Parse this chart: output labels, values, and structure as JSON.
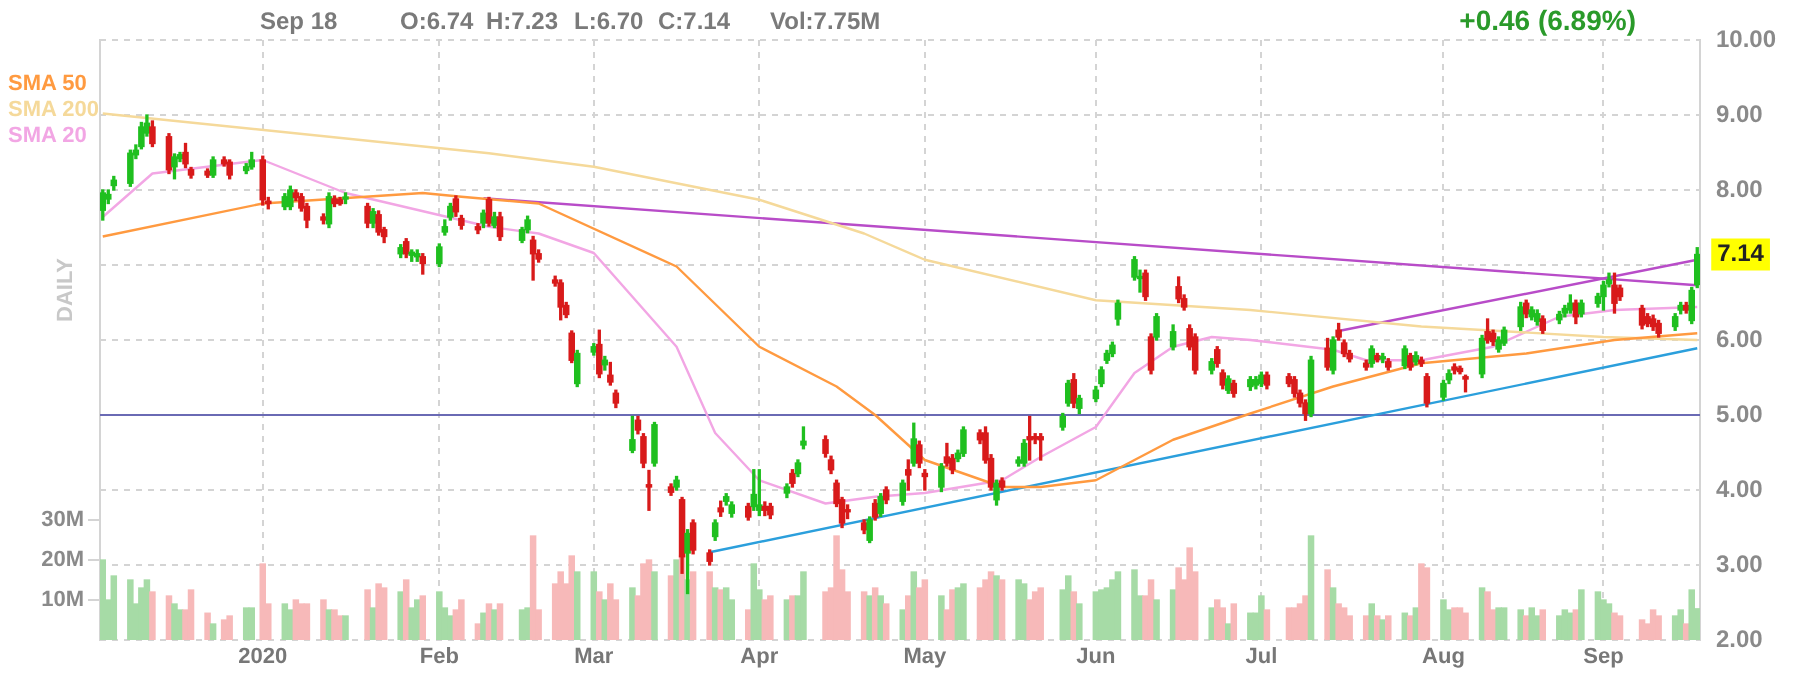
{
  "chart_data": {
    "type": "candlestick",
    "x": [
      "2019-12-04",
      "2019-12-05",
      "2019-12-06",
      "2019-12-09",
      "2019-12-10",
      "2019-12-11",
      "2019-12-12",
      "2019-12-13",
      "2019-12-16",
      "2019-12-17",
      "2019-12-18",
      "2019-12-19",
      "2019-12-20",
      "2019-12-23",
      "2019-12-24",
      "2019-12-26",
      "2019-12-27",
      "2019-12-30",
      "2019-12-31",
      "2020-01-02",
      "2020-01-03",
      "2020-01-06",
      "2020-01-07",
      "2020-01-08",
      "2020-01-09",
      "2020-01-10",
      "2020-01-13",
      "2020-01-14",
      "2020-01-15",
      "2020-01-16",
      "2020-01-17",
      "2020-01-21",
      "2020-01-22",
      "2020-01-23",
      "2020-01-24",
      "2020-01-27",
      "2020-01-28",
      "2020-01-29",
      "2020-01-30",
      "2020-01-31",
      "2020-02-03",
      "2020-02-04",
      "2020-02-05",
      "2020-02-06",
      "2020-02-07",
      "2020-02-10",
      "2020-02-11",
      "2020-02-12",
      "2020-02-13",
      "2020-02-14",
      "2020-02-18",
      "2020-02-19",
      "2020-02-20",
      "2020-02-21",
      "2020-02-24",
      "2020-02-25",
      "2020-02-26",
      "2020-02-27",
      "2020-02-28",
      "2020-03-02",
      "2020-03-03",
      "2020-03-04",
      "2020-03-05",
      "2020-03-06",
      "2020-03-09",
      "2020-03-10",
      "2020-03-11",
      "2020-03-12",
      "2020-03-13",
      "2020-03-16",
      "2020-03-17",
      "2020-03-18",
      "2020-03-19",
      "2020-03-20",
      "2020-03-23",
      "2020-03-24",
      "2020-03-25",
      "2020-03-26",
      "2020-03-27",
      "2020-03-30",
      "2020-03-31",
      "2020-04-01",
      "2020-04-02",
      "2020-04-03",
      "2020-04-06",
      "2020-04-07",
      "2020-04-08",
      "2020-04-09",
      "2020-04-13",
      "2020-04-14",
      "2020-04-15",
      "2020-04-16",
      "2020-04-17",
      "2020-04-20",
      "2020-04-21",
      "2020-04-22",
      "2020-04-23",
      "2020-04-24",
      "2020-04-27",
      "2020-04-28",
      "2020-04-29",
      "2020-04-30",
      "2020-05-01",
      "2020-05-04",
      "2020-05-05",
      "2020-05-06",
      "2020-05-07",
      "2020-05-08",
      "2020-05-11",
      "2020-05-12",
      "2020-05-13",
      "2020-05-14",
      "2020-05-15",
      "2020-05-18",
      "2020-05-19",
      "2020-05-20",
      "2020-05-21",
      "2020-05-22",
      "2020-05-26",
      "2020-05-27",
      "2020-05-28",
      "2020-05-29",
      "2020-06-01",
      "2020-06-02",
      "2020-06-03",
      "2020-06-04",
      "2020-06-05",
      "2020-06-08",
      "2020-06-09",
      "2020-06-10",
      "2020-06-11",
      "2020-06-12",
      "2020-06-15",
      "2020-06-16",
      "2020-06-17",
      "2020-06-18",
      "2020-06-19",
      "2020-06-22",
      "2020-06-23",
      "2020-06-24",
      "2020-06-25",
      "2020-06-26",
      "2020-06-29",
      "2020-06-30",
      "2020-07-01",
      "2020-07-02",
      "2020-07-06",
      "2020-07-07",
      "2020-07-08",
      "2020-07-09",
      "2020-07-10",
      "2020-07-13",
      "2020-07-14",
      "2020-07-15",
      "2020-07-16",
      "2020-07-17",
      "2020-07-20",
      "2020-07-21",
      "2020-07-22",
      "2020-07-23",
      "2020-07-24",
      "2020-07-27",
      "2020-07-28",
      "2020-07-29",
      "2020-07-30",
      "2020-07-31",
      "2020-08-03",
      "2020-08-04",
      "2020-08-05",
      "2020-08-06",
      "2020-08-07",
      "2020-08-10",
      "2020-08-11",
      "2020-08-12",
      "2020-08-13",
      "2020-08-14",
      "2020-08-17",
      "2020-08-18",
      "2020-08-19",
      "2020-08-20",
      "2020-08-21",
      "2020-08-24",
      "2020-08-25",
      "2020-08-26",
      "2020-08-27",
      "2020-08-28",
      "2020-08-31",
      "2020-09-01",
      "2020-09-02",
      "2020-09-03",
      "2020-09-04",
      "2020-09-08",
      "2020-09-09",
      "2020-09-10",
      "2020-09-11",
      "2020-09-14",
      "2020-09-15",
      "2020-09-16",
      "2020-09-17",
      "2020-09-18"
    ],
    "ohlc": [
      [
        7.73,
        8.0,
        7.6,
        7.96
      ],
      [
        7.88,
        8.0,
        7.82,
        7.94
      ],
      [
        8.06,
        8.18,
        8.0,
        8.13
      ],
      [
        8.09,
        8.53,
        8.05,
        8.49
      ],
      [
        8.47,
        8.6,
        8.42,
        8.53
      ],
      [
        8.58,
        8.9,
        8.55,
        8.84
      ],
      [
        8.76,
        9.0,
        8.72,
        8.89
      ],
      [
        8.84,
        8.92,
        8.58,
        8.62
      ],
      [
        8.71,
        8.75,
        8.22,
        8.27
      ],
      [
        8.31,
        8.48,
        8.15,
        8.44
      ],
      [
        8.42,
        8.5,
        8.38,
        8.47
      ],
      [
        8.5,
        8.62,
        8.3,
        8.35
      ],
      [
        8.27,
        8.3,
        8.16,
        8.2
      ],
      [
        8.25,
        8.28,
        8.17,
        8.2
      ],
      [
        8.2,
        8.44,
        8.17,
        8.4
      ],
      [
        8.4,
        8.44,
        8.32,
        8.35
      ],
      [
        8.37,
        8.4,
        8.15,
        8.2
      ],
      [
        8.26,
        8.35,
        8.22,
        8.31
      ],
      [
        8.31,
        8.5,
        8.28,
        8.4
      ],
      [
        8.4,
        8.45,
        7.8,
        7.87
      ],
      [
        7.85,
        7.9,
        7.75,
        7.82
      ],
      [
        7.78,
        7.95,
        7.74,
        7.91
      ],
      [
        7.78,
        8.05,
        7.74,
        8.0
      ],
      [
        7.96,
        8.0,
        7.86,
        7.9
      ],
      [
        7.91,
        7.95,
        7.72,
        7.76
      ],
      [
        7.78,
        7.82,
        7.5,
        7.6
      ],
      [
        7.64,
        7.68,
        7.55,
        7.6
      ],
      [
        7.55,
        7.96,
        7.5,
        7.91
      ],
      [
        7.88,
        7.92,
        7.78,
        7.82
      ],
      [
        7.87,
        7.9,
        7.8,
        7.82
      ],
      [
        7.88,
        7.96,
        7.82,
        7.89
      ],
      [
        7.78,
        7.82,
        7.5,
        7.56
      ],
      [
        7.56,
        7.75,
        7.5,
        7.71
      ],
      [
        7.67,
        7.72,
        7.4,
        7.44
      ],
      [
        7.47,
        7.5,
        7.3,
        7.38
      ],
      [
        7.15,
        7.27,
        7.1,
        7.23
      ],
      [
        7.31,
        7.35,
        7.1,
        7.15
      ],
      [
        7.13,
        7.2,
        7.05,
        7.17
      ],
      [
        7.11,
        7.2,
        7.05,
        7.15
      ],
      [
        7.11,
        7.15,
        6.88,
        7.02
      ],
      [
        7.02,
        7.28,
        6.98,
        7.24
      ],
      [
        7.44,
        7.6,
        7.4,
        7.51
      ],
      [
        7.64,
        7.82,
        7.6,
        7.78
      ],
      [
        7.88,
        7.92,
        7.65,
        7.71
      ],
      [
        7.62,
        7.66,
        7.48,
        7.53
      ],
      [
        7.51,
        7.55,
        7.42,
        7.47
      ],
      [
        7.56,
        7.73,
        7.5,
        7.69
      ],
      [
        7.87,
        7.9,
        7.52,
        7.56
      ],
      [
        7.53,
        7.7,
        7.5,
        7.64
      ],
      [
        7.64,
        7.7,
        7.33,
        7.38
      ],
      [
        7.33,
        7.5,
        7.3,
        7.47
      ],
      [
        7.47,
        7.65,
        7.43,
        7.6
      ],
      [
        7.33,
        7.38,
        6.8,
        7.15
      ],
      [
        7.15,
        7.2,
        7.04,
        7.08
      ],
      [
        6.8,
        6.85,
        6.72,
        6.76
      ],
      [
        6.76,
        6.8,
        6.27,
        6.44
      ],
      [
        6.46,
        6.5,
        6.3,
        6.34
      ],
      [
        6.09,
        6.12,
        5.7,
        5.73
      ],
      [
        5.42,
        5.86,
        5.38,
        5.82
      ],
      [
        5.84,
        5.95,
        5.8,
        5.91
      ],
      [
        5.94,
        6.13,
        5.5,
        5.55
      ],
      [
        5.67,
        5.78,
        5.6,
        5.73
      ],
      [
        5.53,
        5.7,
        5.4,
        5.44
      ],
      [
        5.29,
        5.33,
        5.1,
        5.16
      ],
      [
        4.53,
        4.98,
        4.5,
        4.67
      ],
      [
        4.93,
        4.98,
        4.75,
        4.8
      ],
      [
        4.71,
        4.75,
        4.3,
        4.36
      ],
      [
        4.07,
        4.26,
        3.73,
        4.04
      ],
      [
        4.36,
        4.9,
        4.32,
        4.87
      ],
      [
        4.04,
        4.08,
        3.93,
        3.97
      ],
      [
        4.04,
        4.18,
        4.0,
        4.13
      ],
      [
        3.87,
        3.9,
        2.89,
        3.11
      ],
      [
        3.16,
        3.47,
        2.62,
        3.42
      ],
      [
        3.56,
        3.6,
        3.15,
        3.2
      ],
      [
        3.16,
        3.2,
        3.0,
        3.05
      ],
      [
        3.38,
        3.6,
        3.33,
        3.56
      ],
      [
        3.76,
        3.85,
        3.65,
        3.71
      ],
      [
        3.85,
        3.95,
        3.8,
        3.91
      ],
      [
        3.69,
        3.84,
        3.64,
        3.8
      ],
      [
        3.78,
        3.82,
        3.6,
        3.64
      ],
      [
        3.78,
        4.27,
        3.73,
        3.94
      ],
      [
        3.73,
        4.27,
        3.66,
        3.8
      ],
      [
        3.78,
        3.84,
        3.66,
        3.73
      ],
      [
        3.78,
        3.82,
        3.62,
        3.67
      ],
      [
        3.96,
        4.08,
        3.9,
        4.04
      ],
      [
        4.22,
        4.27,
        4.04,
        4.09
      ],
      [
        4.22,
        4.4,
        4.18,
        4.36
      ],
      [
        4.6,
        4.84,
        4.55,
        4.65
      ],
      [
        4.67,
        4.72,
        4.44,
        4.49
      ],
      [
        4.4,
        4.45,
        4.22,
        4.27
      ],
      [
        4.09,
        4.13,
        3.78,
        3.82
      ],
      [
        3.87,
        3.9,
        3.5,
        3.56
      ],
      [
        3.73,
        3.8,
        3.62,
        3.71
      ],
      [
        3.56,
        3.6,
        3.42,
        3.47
      ],
      [
        3.33,
        3.64,
        3.3,
        3.6
      ],
      [
        3.82,
        3.87,
        3.6,
        3.64
      ],
      [
        3.69,
        3.95,
        3.65,
        3.91
      ],
      [
        4.0,
        4.04,
        3.82,
        3.87
      ],
      [
        3.85,
        4.13,
        3.8,
        4.09
      ],
      [
        4.27,
        4.4,
        4.0,
        4.2
      ],
      [
        4.36,
        4.89,
        4.32,
        4.68
      ],
      [
        4.6,
        4.65,
        4.3,
        4.36
      ],
      [
        4.22,
        4.27,
        4.0,
        4.18
      ],
      [
        4.04,
        4.35,
        3.98,
        4.31
      ],
      [
        4.44,
        4.62,
        4.32,
        4.36
      ],
      [
        4.42,
        4.47,
        4.22,
        4.27
      ],
      [
        4.42,
        4.53,
        4.38,
        4.49
      ],
      [
        4.49,
        4.84,
        4.45,
        4.8
      ],
      [
        4.76,
        4.8,
        4.62,
        4.67
      ],
      [
        4.76,
        4.84,
        4.36,
        4.4
      ],
      [
        4.42,
        4.47,
        4.0,
        4.04
      ],
      [
        3.87,
        4.13,
        3.8,
        4.09
      ],
      [
        4.12,
        4.16,
        4.0,
        4.04
      ],
      [
        4.36,
        4.44,
        4.32,
        4.4
      ],
      [
        4.36,
        4.67,
        4.32,
        4.62
      ],
      [
        4.71,
        4.98,
        4.4,
        4.67
      ],
      [
        4.71,
        4.75,
        4.62,
        4.68
      ],
      [
        4.71,
        4.75,
        4.4,
        4.67
      ],
      [
        4.84,
        5.02,
        4.8,
        4.98
      ],
      [
        5.16,
        5.46,
        5.12,
        5.42
      ],
      [
        5.47,
        5.55,
        5.1,
        5.16
      ],
      [
        5.09,
        5.26,
        5.02,
        5.22
      ],
      [
        5.22,
        5.38,
        5.18,
        5.33
      ],
      [
        5.42,
        5.64,
        5.38,
        5.6
      ],
      [
        5.73,
        5.86,
        5.69,
        5.82
      ],
      [
        5.82,
        5.97,
        5.78,
        5.93
      ],
      [
        6.28,
        6.53,
        6.2,
        6.49
      ],
      [
        6.84,
        7.11,
        6.8,
        7.07
      ],
      [
        6.82,
        6.93,
        6.64,
        6.84
      ],
      [
        6.89,
        6.93,
        6.53,
        6.58
      ],
      [
        6.04,
        6.08,
        5.55,
        5.6
      ],
      [
        6.04,
        6.35,
        6.0,
        6.31
      ],
      [
        5.91,
        6.2,
        5.87,
        6.11
      ],
      [
        6.71,
        6.84,
        6.5,
        6.55
      ],
      [
        6.55,
        6.6,
        6.4,
        6.44
      ],
      [
        6.15,
        6.2,
        5.87,
        5.91
      ],
      [
        6.04,
        6.08,
        5.55,
        5.6
      ],
      [
        5.6,
        5.75,
        5.55,
        5.71
      ],
      [
        5.87,
        5.91,
        5.64,
        5.69
      ],
      [
        5.56,
        5.6,
        5.35,
        5.4
      ],
      [
        5.33,
        5.52,
        5.29,
        5.48
      ],
      [
        5.42,
        5.46,
        5.24,
        5.29
      ],
      [
        5.38,
        5.51,
        5.33,
        5.47
      ],
      [
        5.4,
        5.51,
        5.35,
        5.47
      ],
      [
        5.42,
        5.57,
        5.38,
        5.53
      ],
      [
        5.53,
        5.57,
        5.35,
        5.4
      ],
      [
        5.51,
        5.55,
        5.38,
        5.42
      ],
      [
        5.47,
        5.51,
        5.24,
        5.29
      ],
      [
        5.29,
        5.33,
        5.11,
        5.16
      ],
      [
        5.16,
        5.2,
        4.93,
        5.02
      ],
      [
        5.02,
        5.78,
        4.98,
        5.73
      ],
      [
        5.89,
        6.02,
        5.6,
        5.64
      ],
      [
        5.6,
        6.04,
        5.55,
        6.0
      ],
      [
        6.13,
        6.22,
        6.0,
        6.04
      ],
      [
        5.96,
        6.0,
        5.78,
        5.82
      ],
      [
        5.82,
        5.86,
        5.71,
        5.75
      ],
      [
        5.69,
        5.73,
        5.6,
        5.64
      ],
      [
        5.69,
        5.92,
        5.64,
        5.88
      ],
      [
        5.79,
        5.82,
        5.71,
        5.74
      ],
      [
        5.75,
        5.82,
        5.7,
        5.76
      ],
      [
        5.71,
        5.75,
        5.6,
        5.64
      ],
      [
        5.66,
        5.92,
        5.62,
        5.88
      ],
      [
        5.79,
        5.82,
        5.6,
        5.64
      ],
      [
        5.71,
        5.84,
        5.67,
        5.79
      ],
      [
        5.73,
        5.77,
        5.65,
        5.69
      ],
      [
        5.51,
        5.55,
        5.11,
        5.16
      ],
      [
        5.24,
        5.46,
        5.2,
        5.42
      ],
      [
        5.47,
        5.6,
        5.42,
        5.55
      ],
      [
        5.64,
        5.68,
        5.55,
        5.6
      ],
      [
        5.62,
        5.65,
        5.55,
        5.58
      ],
      [
        5.51,
        5.53,
        5.31,
        5.48
      ],
      [
        5.55,
        6.06,
        5.5,
        6.02
      ],
      [
        6.11,
        6.28,
        5.96,
        6.0
      ],
      [
        6.09,
        6.13,
        5.93,
        5.98
      ],
      [
        5.88,
        6.04,
        5.84,
        6.0
      ],
      [
        5.96,
        6.17,
        5.93,
        6.13
      ],
      [
        6.18,
        6.5,
        6.13,
        6.44
      ],
      [
        6.49,
        6.53,
        6.3,
        6.35
      ],
      [
        6.31,
        6.44,
        6.27,
        6.4
      ],
      [
        6.25,
        6.4,
        6.2,
        6.35
      ],
      [
        6.28,
        6.32,
        6.09,
        6.13
      ],
      [
        6.27,
        6.38,
        6.22,
        6.34
      ],
      [
        6.36,
        6.46,
        6.31,
        6.42
      ],
      [
        6.4,
        6.6,
        6.36,
        6.49
      ],
      [
        6.49,
        6.53,
        6.22,
        6.31
      ],
      [
        6.35,
        6.53,
        6.31,
        6.49
      ],
      [
        6.49,
        6.62,
        6.44,
        6.58
      ],
      [
        6.58,
        6.78,
        6.4,
        6.73
      ],
      [
        6.75,
        6.89,
        6.71,
        6.8
      ],
      [
        6.73,
        6.89,
        6.36,
        6.49
      ],
      [
        6.69,
        6.73,
        6.53,
        6.58
      ],
      [
        6.42,
        6.46,
        6.15,
        6.2
      ],
      [
        6.31,
        6.35,
        6.18,
        6.22
      ],
      [
        6.28,
        6.33,
        6.13,
        6.18
      ],
      [
        6.22,
        6.26,
        6.04,
        6.09
      ],
      [
        6.18,
        6.35,
        6.13,
        6.31
      ],
      [
        6.4,
        6.5,
        6.35,
        6.46
      ],
      [
        6.46,
        6.5,
        6.36,
        6.4
      ],
      [
        6.26,
        6.7,
        6.22,
        6.66
      ],
      [
        6.74,
        7.23,
        6.7,
        7.14
      ]
    ],
    "colors": [
      "#1fbf1f",
      "#1fbf1f",
      "#1fbf1f",
      "#1fbf1f",
      "#1fbf1f",
      "#1fbf1f",
      "#1fbf1f",
      "#d81a1a",
      "#d81a1a",
      "#1fbf1f",
      "#1fbf1f",
      "#d81a1a",
      "#d81a1a",
      "#d81a1a",
      "#1fbf1f",
      "#d81a1a",
      "#d81a1a",
      "#1fbf1f",
      "#1fbf1f",
      "#d81a1a",
      "#d81a1a",
      "#1fbf1f",
      "#1fbf1f",
      "#d81a1a",
      "#d81a1a",
      "#d81a1a",
      "#d81a1a",
      "#1fbf1f",
      "#d81a1a",
      "#d81a1a",
      "#1fbf1f",
      "#d81a1a",
      "#1fbf1f",
      "#d81a1a",
      "#d81a1a",
      "#1fbf1f",
      "#d81a1a",
      "#1fbf1f",
      "#1fbf1f",
      "#d81a1a",
      "#1fbf1f",
      "#1fbf1f",
      "#1fbf1f",
      "#d81a1a",
      "#d81a1a",
      "#d81a1a",
      "#1fbf1f",
      "#d81a1a",
      "#1fbf1f",
      "#d81a1a",
      "#1fbf1f",
      "#1fbf1f",
      "#d81a1a",
      "#d81a1a",
      "#d81a1a",
      "#d81a1a",
      "#d81a1a",
      "#d81a1a",
      "#1fbf1f",
      "#1fbf1f",
      "#d81a1a",
      "#1fbf1f",
      "#d81a1a",
      "#d81a1a",
      "#1fbf1f",
      "#d81a1a",
      "#d81a1a",
      "#d81a1a",
      "#1fbf1f",
      "#d81a1a",
      "#1fbf1f",
      "#d81a1a",
      "#1fbf1f",
      "#d81a1a",
      "#d81a1a",
      "#1fbf1f",
      "#d81a1a",
      "#1fbf1f",
      "#1fbf1f",
      "#d81a1a",
      "#1fbf1f",
      "#1fbf1f",
      "#d81a1a",
      "#d81a1a",
      "#1fbf1f",
      "#d81a1a",
      "#1fbf1f",
      "#1fbf1f",
      "#d81a1a",
      "#d81a1a",
      "#d81a1a",
      "#d81a1a",
      "#d81a1a",
      "#d81a1a",
      "#1fbf1f",
      "#d81a1a",
      "#1fbf1f",
      "#d81a1a",
      "#1fbf1f",
      "#d81a1a",
      "#1fbf1f",
      "#d81a1a",
      "#d81a1a",
      "#1fbf1f",
      "#d81a1a",
      "#d81a1a",
      "#1fbf1f",
      "#1fbf1f",
      "#d81a1a",
      "#d81a1a",
      "#d81a1a",
      "#1fbf1f",
      "#d81a1a",
      "#1fbf1f",
      "#1fbf1f",
      "#d81a1a",
      "#d81a1a",
      "#d81a1a",
      "#1fbf1f",
      "#1fbf1f",
      "#d81a1a",
      "#1fbf1f",
      "#1fbf1f",
      "#1fbf1f",
      "#1fbf1f",
      "#1fbf1f",
      "#1fbf1f",
      "#1fbf1f",
      "#1fbf1f",
      "#d81a1a",
      "#d81a1a",
      "#1fbf1f",
      "#1fbf1f",
      "#d81a1a",
      "#d81a1a",
      "#d81a1a",
      "#d81a1a",
      "#1fbf1f",
      "#d81a1a",
      "#d81a1a",
      "#1fbf1f",
      "#d81a1a",
      "#1fbf1f",
      "#1fbf1f",
      "#1fbf1f",
      "#d81a1a",
      "#d81a1a",
      "#d81a1a",
      "#d81a1a",
      "#d81a1a",
      "#1fbf1f",
      "#d81a1a",
      "#1fbf1f",
      "#d81a1a",
      "#d81a1a",
      "#d81a1a",
      "#d81a1a",
      "#1fbf1f",
      "#d81a1a",
      "#1fbf1f",
      "#d81a1a",
      "#1fbf1f",
      "#d81a1a",
      "#1fbf1f",
      "#d81a1a",
      "#d81a1a",
      "#1fbf1f",
      "#1fbf1f",
      "#d81a1a",
      "#d81a1a",
      "#d81a1a",
      "#1fbf1f",
      "#d81a1a",
      "#d81a1a",
      "#1fbf1f",
      "#1fbf1f",
      "#1fbf1f",
      "#d81a1a",
      "#1fbf1f",
      "#1fbf1f",
      "#d81a1a",
      "#1fbf1f",
      "#1fbf1f",
      "#1fbf1f",
      "#d81a1a",
      "#1fbf1f",
      "#1fbf1f",
      "#1fbf1f",
      "#1fbf1f",
      "#d81a1a",
      "#d81a1a",
      "#d81a1a",
      "#d81a1a",
      "#d81a1a",
      "#d81a1a",
      "#1fbf1f",
      "#1fbf1f",
      "#d81a1a",
      "#1fbf1f",
      "#1fbf1f"
    ],
    "series": [
      {
        "name": "SMA 50",
        "type": "line",
        "color": "#ff9a40",
        "x": [
          "2019-12-04",
          "2020-01-02",
          "2020-01-31",
          "2020-02-07",
          "2020-02-21",
          "2020-03-17",
          "2020-04-01",
          "2020-04-15",
          "2020-04-22",
          "2020-05-01",
          "2020-05-15",
          "2020-05-22",
          "2020-06-01",
          "2020-06-15",
          "2020-06-29",
          "2020-07-14",
          "2020-07-30",
          "2020-08-18",
          "2020-09-03",
          "2020-09-18"
        ],
        "values": [
          7.38,
          7.82,
          7.96,
          7.91,
          7.82,
          6.98,
          5.91,
          5.38,
          5.0,
          4.4,
          4.04,
          4.04,
          4.13,
          4.67,
          5.02,
          5.38,
          5.69,
          5.82,
          6.0,
          6.09
        ]
      },
      {
        "name": "SMA 200",
        "type": "line",
        "color": "#f5d99a",
        "x": [
          "2019-12-04",
          "2020-02-12",
          "2020-03-02",
          "2020-04-01",
          "2020-04-20",
          "2020-05-01",
          "2020-06-01",
          "2020-06-29",
          "2020-07-30",
          "2020-09-01",
          "2020-09-18"
        ],
        "values": [
          9.02,
          8.49,
          8.31,
          7.87,
          7.42,
          7.07,
          6.53,
          6.4,
          6.18,
          6.04,
          6.0
        ]
      },
      {
        "name": "SMA 20",
        "type": "line",
        "color": "#f2a6e4",
        "x": [
          "2019-12-04",
          "2019-12-13",
          "2020-01-02",
          "2020-01-17",
          "2020-02-12",
          "2020-02-21",
          "2020-03-02",
          "2020-03-17",
          "2020-03-24",
          "2020-04-01",
          "2020-04-13",
          "2020-04-22",
          "2020-05-01",
          "2020-05-15",
          "2020-05-22",
          "2020-06-01",
          "2020-06-08",
          "2020-06-15",
          "2020-06-22",
          "2020-06-29",
          "2020-07-14",
          "2020-07-20",
          "2020-07-30",
          "2020-08-12",
          "2020-08-24",
          "2020-09-03",
          "2020-09-18"
        ],
        "values": [
          7.64,
          8.22,
          8.4,
          7.96,
          7.51,
          7.42,
          7.16,
          5.91,
          4.76,
          4.13,
          3.82,
          3.91,
          3.96,
          4.13,
          4.44,
          4.84,
          5.56,
          5.91,
          6.04,
          6.0,
          5.87,
          5.73,
          5.73,
          5.91,
          6.31,
          6.4,
          6.44
        ]
      },
      {
        "type": "line",
        "color": "#b84cc8",
        "x": [
          "2020-02-11",
          "2020-09-18"
        ],
        "values": [
          7.89,
          6.73
        ]
      },
      {
        "type": "line",
        "color": "#b84cc8",
        "x": [
          "2020-07-15",
          "2020-09-18"
        ],
        "values": [
          6.12,
          7.07
        ]
      },
      {
        "type": "line",
        "color": "#2b9fdc",
        "x": [
          "2020-03-23",
          "2020-09-18"
        ],
        "values": [
          3.17,
          5.89
        ]
      },
      {
        "type": "bar",
        "axis": "y2",
        "values": [
          20,
          10,
          16,
          15,
          9,
          13,
          15,
          12,
          11,
          9,
          7.5,
          7.5,
          12.5,
          6.7,
          4,
          5,
          6,
          8,
          8,
          19,
          9,
          9,
          7.5,
          10,
          9,
          9,
          10,
          7.5,
          7.5,
          6,
          6,
          12.5,
          8,
          14,
          13,
          12,
          15,
          8,
          10,
          11,
          12,
          8,
          6,
          7.5,
          10,
          4,
          6.7,
          9,
          7.5,
          9,
          7.5,
          8,
          26,
          7.5,
          14,
          17,
          14,
          21,
          17,
          17,
          12,
          10,
          14,
          10,
          13,
          11,
          19,
          20,
          17,
          16,
          20,
          21,
          15,
          17,
          17,
          13,
          12.5,
          13,
          10,
          7.5,
          19,
          12.5,
          10,
          11,
          10,
          11,
          11,
          17,
          12,
          13,
          26,
          17.5,
          12,
          12,
          11,
          13,
          11,
          9,
          7.5,
          11,
          17,
          13,
          15,
          11,
          7.5,
          12.5,
          13,
          14,
          13,
          15,
          17,
          16,
          15,
          15,
          14,
          10,
          12,
          13,
          12.5,
          16,
          12,
          9,
          12,
          12.5,
          13,
          15,
          17,
          17.5,
          11,
          11,
          15,
          10,
          12.5,
          18,
          15,
          23,
          17,
          8,
          10,
          8,
          4,
          9,
          6.7,
          6.7,
          11,
          7.5,
          8,
          8,
          9,
          11,
          26,
          17.5,
          13,
          9,
          8,
          6,
          6,
          9,
          6,
          5,
          6,
          6.7,
          6,
          8,
          19,
          18,
          10,
          7.5,
          8,
          8,
          6.7,
          13,
          12,
          7.5,
          8,
          8,
          7.5,
          6,
          8,
          6,
          7.5,
          6,
          7.5,
          6.7,
          7.5,
          12.5,
          12,
          10,
          9,
          6.7,
          6,
          5,
          4,
          7.5,
          6,
          6,
          7.5,
          4,
          12.5,
          7.8
        ],
        "colors": [
          "#a6dba6",
          "#a6dba6",
          "#a6dba6",
          "#a6dba6",
          "#a6dba6",
          "#a6dba6",
          "#a6dba6",
          "#f7b9b9",
          "#f7b9b9",
          "#a6dba6",
          "#a6dba6",
          "#f7b9b9",
          "#f7b9b9",
          "#f7b9b9",
          "#a6dba6",
          "#f7b9b9",
          "#f7b9b9",
          "#a6dba6",
          "#a6dba6",
          "#f7b9b9",
          "#f7b9b9",
          "#a6dba6",
          "#a6dba6",
          "#f7b9b9",
          "#f7b9b9",
          "#f7b9b9",
          "#f7b9b9",
          "#a6dba6",
          "#f7b9b9",
          "#f7b9b9",
          "#a6dba6",
          "#f7b9b9",
          "#a6dba6",
          "#f7b9b9",
          "#f7b9b9",
          "#a6dba6",
          "#f7b9b9",
          "#a6dba6",
          "#a6dba6",
          "#f7b9b9",
          "#a6dba6",
          "#a6dba6",
          "#a6dba6",
          "#f7b9b9",
          "#f7b9b9",
          "#f7b9b9",
          "#a6dba6",
          "#f7b9b9",
          "#a6dba6",
          "#f7b9b9",
          "#a6dba6",
          "#a6dba6",
          "#f7b9b9",
          "#f7b9b9",
          "#f7b9b9",
          "#f7b9b9",
          "#f7b9b9",
          "#f7b9b9",
          "#a6dba6",
          "#a6dba6",
          "#f7b9b9",
          "#a6dba6",
          "#f7b9b9",
          "#f7b9b9",
          "#a6dba6",
          "#f7b9b9",
          "#f7b9b9",
          "#f7b9b9",
          "#a6dba6",
          "#f7b9b9",
          "#a6dba6",
          "#f7b9b9",
          "#a6dba6",
          "#f7b9b9",
          "#f7b9b9",
          "#a6dba6",
          "#f7b9b9",
          "#a6dba6",
          "#a6dba6",
          "#f7b9b9",
          "#a6dba6",
          "#a6dba6",
          "#f7b9b9",
          "#f7b9b9",
          "#a6dba6",
          "#f7b9b9",
          "#a6dba6",
          "#a6dba6",
          "#f7b9b9",
          "#f7b9b9",
          "#f7b9b9",
          "#f7b9b9",
          "#f7b9b9",
          "#f7b9b9",
          "#a6dba6",
          "#f7b9b9",
          "#a6dba6",
          "#f7b9b9",
          "#a6dba6",
          "#f7b9b9",
          "#a6dba6",
          "#f7b9b9",
          "#f7b9b9",
          "#a6dba6",
          "#f7b9b9",
          "#f7b9b9",
          "#a6dba6",
          "#a6dba6",
          "#f7b9b9",
          "#f7b9b9",
          "#f7b9b9",
          "#a6dba6",
          "#f7b9b9",
          "#a6dba6",
          "#a6dba6",
          "#f7b9b9",
          "#f7b9b9",
          "#f7b9b9",
          "#a6dba6",
          "#a6dba6",
          "#f7b9b9",
          "#a6dba6",
          "#a6dba6",
          "#a6dba6",
          "#a6dba6",
          "#a6dba6",
          "#a6dba6",
          "#a6dba6",
          "#a6dba6",
          "#f7b9b9",
          "#f7b9b9",
          "#a6dba6",
          "#a6dba6",
          "#f7b9b9",
          "#f7b9b9",
          "#f7b9b9",
          "#f7b9b9",
          "#a6dba6",
          "#f7b9b9",
          "#f7b9b9",
          "#a6dba6",
          "#f7b9b9",
          "#a6dba6",
          "#a6dba6",
          "#a6dba6",
          "#f7b9b9",
          "#f7b9b9",
          "#f7b9b9",
          "#f7b9b9",
          "#f7b9b9",
          "#a6dba6",
          "#f7b9b9",
          "#a6dba6",
          "#f7b9b9",
          "#f7b9b9",
          "#f7b9b9",
          "#f7b9b9",
          "#a6dba6",
          "#f7b9b9",
          "#a6dba6",
          "#f7b9b9",
          "#a6dba6",
          "#f7b9b9",
          "#a6dba6",
          "#f7b9b9",
          "#f7b9b9",
          "#a6dba6",
          "#a6dba6",
          "#f7b9b9",
          "#f7b9b9",
          "#f7b9b9",
          "#a6dba6",
          "#f7b9b9",
          "#f7b9b9",
          "#a6dba6",
          "#a6dba6",
          "#a6dba6",
          "#f7b9b9",
          "#a6dba6",
          "#a6dba6",
          "#f7b9b9",
          "#a6dba6",
          "#a6dba6",
          "#a6dba6",
          "#f7b9b9",
          "#a6dba6",
          "#a6dba6",
          "#a6dba6",
          "#a6dba6",
          "#f7b9b9",
          "#f7b9b9",
          "#f7b9b9",
          "#f7b9b9",
          "#f7b9b9",
          "#f7b9b9",
          "#a6dba6",
          "#a6dba6",
          "#f7b9b9",
          "#a6dba6",
          "#a6dba6"
        ]
      }
    ],
    "xlim": [
      "2019-12-03T12:00",
      "2020-09-18T12:00"
    ],
    "ylim": [
      2,
      10
    ],
    "yticks": [
      {
        "value": 2,
        "label": "2.00"
      },
      {
        "value": 3,
        "label": "3.00"
      },
      {
        "value": 4,
        "label": "4.00"
      },
      {
        "value": 5,
        "label": "5.00"
      },
      {
        "value": 6,
        "label": "6.00"
      },
      {
        "value": 7,
        "label": null
      },
      {
        "value": 8,
        "label": "8.00"
      },
      {
        "value": 9,
        "label": "9.00"
      },
      {
        "value": 10,
        "label": "10.00"
      }
    ],
    "y2lim": [
      0,
      150
    ],
    "y2ticks": [
      {
        "value": 10,
        "label": "10M"
      },
      {
        "value": 20,
        "label": "20M"
      },
      {
        "value": 30,
        "label": "30M"
      }
    ],
    "xticks": [
      {
        "value": "2020-01-02",
        "label": "2020"
      },
      {
        "value": "2020-02-03",
        "label": "Feb"
      },
      {
        "value": "2020-03-02",
        "label": "Mar"
      },
      {
        "value": "2020-04-01",
        "label": "Apr"
      },
      {
        "value": "2020-05-01",
        "label": "May"
      },
      {
        "value": "2020-06-01",
        "label": "Jun"
      },
      {
        "value": "2020-07-01",
        "label": "Jul"
      },
      {
        "value": "2020-08-03",
        "label": "Aug"
      },
      {
        "value": "2020-09-01",
        "label": "Sep"
      }
    ],
    "ref_lines": [
      {
        "axis": "y",
        "value": 5,
        "color": "#6a6ab4"
      }
    ],
    "grid": true,
    "legend": "top left",
    "annotations": [
      "Sep 18",
      "O:6.74",
      "H:7.23",
      "L:6.70",
      "C:7.14",
      "Vol:7.75M",
      "+0.46 (6.89%)",
      "DAILY",
      {
        "text": "7.14",
        "x": "2020-09-18",
        "y": 7.14
      }
    ]
  }
}
